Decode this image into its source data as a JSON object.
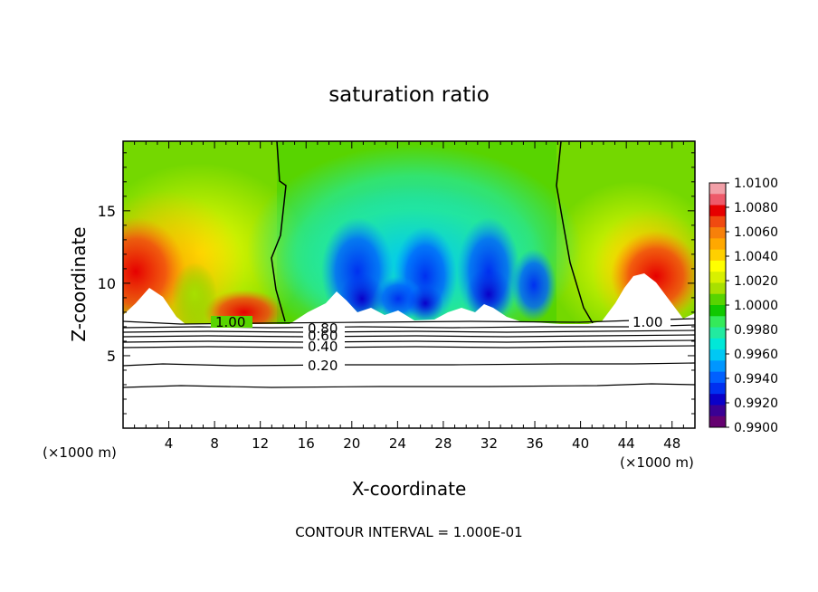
{
  "chart_data": {
    "type": "heatmap",
    "title": "saturation ratio",
    "xlabel": "X-coordinate",
    "ylabel": "Z-coordinate",
    "x_unit_left": "(×1000 m)",
    "x_unit_right": "(×1000 m)",
    "footer": "CONTOUR INTERVAL = 1.000E-01",
    "xlim": [
      0,
      50
    ],
    "ylim": [
      0,
      19.8
    ],
    "x_ticks": [
      4,
      8,
      12,
      16,
      20,
      24,
      28,
      32,
      36,
      40,
      44,
      48
    ],
    "y_ticks": [
      5,
      10,
      15
    ],
    "colorbar": {
      "labels": [
        "1.0100",
        "1.0080",
        "1.0060",
        "1.0040",
        "1.0020",
        "1.0000",
        "0.9980",
        "0.9960",
        "0.9940",
        "0.9920",
        "0.9900"
      ],
      "colors": [
        "#f2a0a8",
        "#ee5a6a",
        "#e60000",
        "#f04a10",
        "#f7800a",
        "#ffa800",
        "#ffd000",
        "#ffff00",
        "#d8f000",
        "#a8e000",
        "#58d400",
        "#10c800",
        "#34ea5a",
        "#22eaa0",
        "#00e8d8",
        "#00c8f4",
        "#0096ff",
        "#0060ff",
        "#0030f0",
        "#0a00c8",
        "#3a0094",
        "#640070"
      ]
    },
    "contour_labels": [
      {
        "text": "1.00",
        "x": 9.5,
        "y": 7.0
      },
      {
        "text": "1.00",
        "x": 46.5,
        "y": 7.0
      },
      {
        "text": "0.80",
        "x": 17.5,
        "y": 6.5
      },
      {
        "text": "0.60",
        "x": 17.5,
        "y": 5.9
      },
      {
        "text": "0.40",
        "x": 17.5,
        "y": 5.3
      },
      {
        "text": "0.20",
        "x": 17.5,
        "y": 4.1
      }
    ]
  }
}
